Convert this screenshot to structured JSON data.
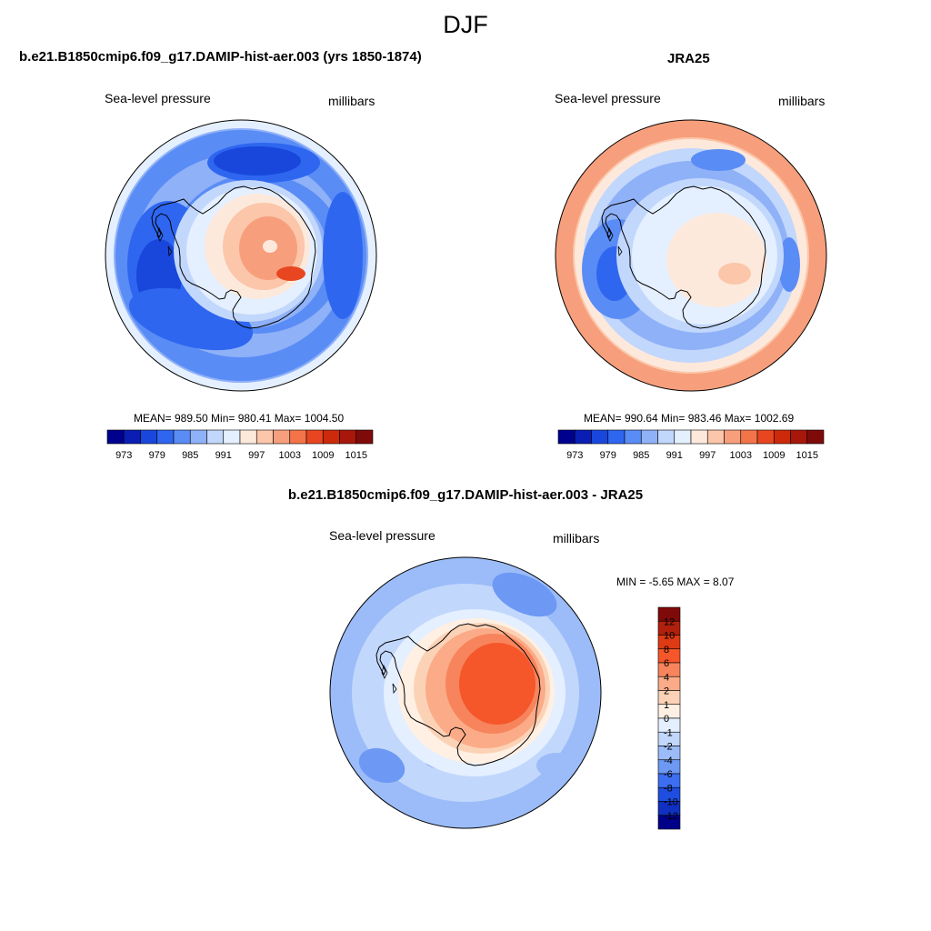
{
  "title": "DJF",
  "colors": {
    "abs": [
      "#00008f",
      "#0a1eb4",
      "#1947dc",
      "#2e66f0",
      "#5a8cf5",
      "#8fb1f8",
      "#c2d7fc",
      "#e4efff",
      "#fde9dc",
      "#fbc6a9",
      "#f79f7c",
      "#f37449",
      "#e84620",
      "#cc2a0a",
      "#a8170b",
      "#7f0a0a"
    ],
    "diff": [
      "#7f0a0a",
      "#b0200c",
      "#de3a14",
      "#f5562a",
      "#f7845c",
      "#fbab87",
      "#fcd2b6",
      "#fff0e3",
      "#e4efff",
      "#c2d7fc",
      "#9bbcf8",
      "#6d99f4",
      "#3d6ef2",
      "#1e4de0",
      "#0f30c0",
      "#000089"
    ],
    "coast": "#000000"
  },
  "chart_data": [
    {
      "type": "heatmap",
      "name": "model",
      "title": "b.e21.B1850cmip6.f09_g17.DAMIP-hist-aer.003 (yrs 1850-1874)",
      "left_label": "Sea-level pressure",
      "right_label": "millibars",
      "stats": "MEAN= 989.50  Min= 980.41  Max= 1004.50",
      "mean": 989.5,
      "min": 980.41,
      "max": 1004.5,
      "levels": [
        973,
        976,
        979,
        982,
        985,
        988,
        991,
        994,
        997,
        1000,
        1003,
        1006,
        1009,
        1012,
        1015
      ],
      "tick_labels": [
        "973",
        "979",
        "985",
        "991",
        "997",
        "1003",
        "1009",
        "1015"
      ],
      "units": "mb"
    },
    {
      "type": "heatmap",
      "name": "obs",
      "title": "JRA25",
      "left_label": "Sea-level pressure",
      "right_label": "millibars",
      "stats": "MEAN= 990.64  Min= 983.46  Max= 1002.69",
      "mean": 990.64,
      "min": 983.46,
      "max": 1002.69,
      "levels": [
        973,
        976,
        979,
        982,
        985,
        988,
        991,
        994,
        997,
        1000,
        1003,
        1006,
        1009,
        1012,
        1015
      ],
      "tick_labels": [
        "973",
        "979",
        "985",
        "991",
        "997",
        "1003",
        "1009",
        "1015"
      ],
      "units": "mb"
    },
    {
      "type": "heatmap",
      "name": "difference",
      "title": "b.e21.B1850cmip6.f09_g17.DAMIP-hist-aer.003 - JRA25",
      "left_label": "Sea-level pressure",
      "right_label": "millibars",
      "stats": "MIN =  -5.65 MAX =   8.07",
      "min": -5.65,
      "max": 8.07,
      "levels": [
        12,
        10,
        8,
        6,
        4,
        2,
        1,
        0,
        -1,
        -2,
        -4,
        -6,
        -8,
        -10,
        -12
      ],
      "tick_labels": [
        "12",
        "10",
        "8",
        "6",
        "4",
        "2",
        "1",
        "0",
        "-1",
        "-2",
        "-4",
        "-6",
        "-8",
        "-10",
        "-12"
      ],
      "units": "mb"
    }
  ]
}
